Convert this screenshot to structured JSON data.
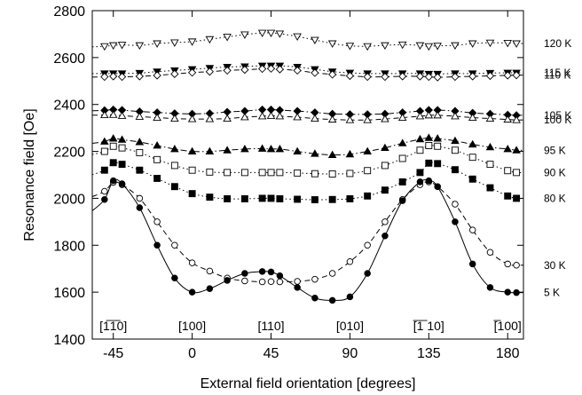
{
  "chart_data": {
    "type": "scatter",
    "xlabel": "External field orientation [degrees]",
    "ylabel": "Resonance field [Oe]",
    "xlim": [
      -57,
      189
    ],
    "ylim": [
      1400,
      2800
    ],
    "x_ticks": [
      -45,
      0,
      45,
      90,
      135,
      180
    ],
    "y_ticks": [
      1400,
      1600,
      1800,
      2000,
      2200,
      2400,
      2600,
      2800
    ],
    "grid": false,
    "legend": "right",
    "annotations": [
      {
        "text": "[1̅1̅0]",
        "x": -45
      },
      {
        "text": "[100]",
        "x": 0
      },
      {
        "text": "[110]",
        "x": 45
      },
      {
        "text": "[010]",
        "x": 90
      },
      {
        "text": "[̅1̅ 10]",
        "x": 135
      },
      {
        "text": "[̅100]",
        "x": 180
      }
    ],
    "x": [
      -50,
      -45,
      -40,
      -30,
      -20,
      -10,
      0,
      10,
      20,
      30,
      40,
      45,
      50,
      60,
      70,
      80,
      90,
      100,
      110,
      120,
      130,
      135,
      140,
      150,
      160,
      170,
      180,
      185
    ],
    "series": [
      {
        "name": "120 K",
        "marker": "triangle-down-open",
        "line": "dotted",
        "values": [
          2648,
          2652,
          2654,
          2652,
          2660,
          2664,
          2668,
          2678,
          2688,
          2698,
          2705,
          2705,
          2702,
          2690,
          2675,
          2660,
          2650,
          2648,
          2652,
          2655,
          2652,
          2648,
          2650,
          2652,
          2660,
          2663,
          2662,
          2660
        ]
      },
      {
        "name": "115 K",
        "marker": "triangle-down-filled",
        "line": "dotted",
        "values": [
          2532,
          2532,
          2532,
          2534,
          2540,
          2545,
          2550,
          2555,
          2560,
          2562,
          2565,
          2565,
          2565,
          2560,
          2550,
          2540,
          2535,
          2532,
          2532,
          2532,
          2532,
          2530,
          2530,
          2532,
          2532,
          2534,
          2535,
          2535
        ]
      },
      {
        "name": "110 K",
        "marker": "diamond-open",
        "line": "dashed",
        "values": [
          2518,
          2520,
          2518,
          2520,
          2524,
          2530,
          2536,
          2540,
          2545,
          2548,
          2552,
          2553,
          2550,
          2545,
          2535,
          2528,
          2522,
          2518,
          2518,
          2520,
          2520,
          2518,
          2516,
          2518,
          2520,
          2522,
          2524,
          2525
        ]
      },
      {
        "name": "105 K",
        "marker": "diamond-filled",
        "line": "dash-dot",
        "values": [
          2375,
          2378,
          2376,
          2370,
          2366,
          2362,
          2360,
          2362,
          2368,
          2372,
          2378,
          2378,
          2376,
          2372,
          2366,
          2360,
          2358,
          2358,
          2360,
          2366,
          2372,
          2376,
          2376,
          2372,
          2364,
          2360,
          2356,
          2354
        ]
      },
      {
        "name": "100 K",
        "marker": "triangle-up-open",
        "line": "dashed",
        "values": [
          2355,
          2356,
          2352,
          2348,
          2344,
          2340,
          2338,
          2338,
          2340,
          2346,
          2350,
          2352,
          2350,
          2346,
          2340,
          2336,
          2334,
          2334,
          2338,
          2344,
          2350,
          2354,
          2354,
          2350,
          2344,
          2340,
          2336,
          2334
        ]
      },
      {
        "name": "95 K",
        "marker": "triangle-up-filled",
        "line": "dash-dot",
        "values": [
          2242,
          2255,
          2250,
          2240,
          2225,
          2210,
          2200,
          2200,
          2205,
          2210,
          2212,
          2210,
          2210,
          2200,
          2190,
          2185,
          2188,
          2200,
          2215,
          2235,
          2252,
          2258,
          2255,
          2245,
          2230,
          2218,
          2210,
          2205
        ]
      },
      {
        "name": "90 K",
        "marker": "square-open",
        "line": "dotted",
        "values": [
          2200,
          2222,
          2215,
          2195,
          2165,
          2140,
          2120,
          2112,
          2110,
          2110,
          2110,
          2110,
          2110,
          2108,
          2105,
          2104,
          2106,
          2118,
          2140,
          2170,
          2205,
          2225,
          2222,
          2205,
          2175,
          2145,
          2118,
          2110
        ]
      },
      {
        "name": "80 K",
        "marker": "square-filled",
        "line": "dotted",
        "values": [
          2120,
          2152,
          2145,
          2120,
          2085,
          2050,
          2020,
          2005,
          1998,
          1998,
          2000,
          2000,
          1998,
          1996,
          1994,
          1995,
          1998,
          2010,
          2035,
          2070,
          2110,
          2150,
          2148,
          2122,
          2082,
          2045,
          2010,
          2000
        ]
      },
      {
        "name": "30 K",
        "marker": "circle-open",
        "line": "dashed",
        "values": [
          2030,
          2068,
          2058,
          2000,
          1900,
          1800,
          1725,
          1690,
          1660,
          1648,
          1644,
          1645,
          1644,
          1646,
          1655,
          1680,
          1730,
          1800,
          1900,
          1995,
          2058,
          2070,
          2050,
          1975,
          1865,
          1770,
          1720,
          1715
        ]
      },
      {
        "name": "5 K",
        "marker": "circle-filled",
        "line": "solid",
        "values": [
          1995,
          2075,
          2062,
          1960,
          1800,
          1660,
          1600,
          1615,
          1650,
          1680,
          1688,
          1686,
          1670,
          1620,
          1575,
          1565,
          1580,
          1680,
          1840,
          1990,
          2070,
          2075,
          2050,
          1900,
          1720,
          1620,
          1600,
          1598
        ]
      }
    ]
  }
}
